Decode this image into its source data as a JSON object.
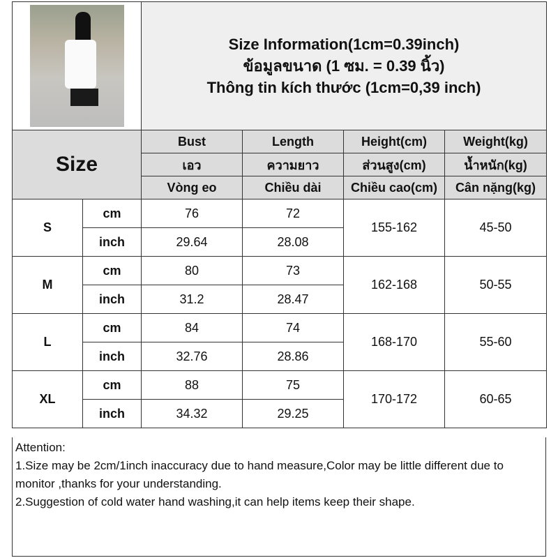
{
  "title_lines": [
    "Size Information(1cm=0.39inch)",
    "ข้อมูลขนาด (1 ซม. = 0.39 นิ้ว)",
    "Thông tin kích thước (1cm=0,39 inch)"
  ],
  "size_label": "Size",
  "headers": [
    [
      "Bust",
      "เอว",
      "Vòng eo"
    ],
    [
      "Length",
      "ความยาว",
      "Chiều dài"
    ],
    [
      "Height(cm)",
      "ส่วนสูง(cm)",
      "Chiều cao(cm)"
    ],
    [
      "Weight(kg)",
      "น้ำหนัก(kg)",
      "Cân nặng(kg)"
    ]
  ],
  "rows": [
    {
      "size": "S",
      "cm": {
        "unit": "cm",
        "bust": "76",
        "length": "72"
      },
      "inch": {
        "unit": "inch",
        "bust": "29.64",
        "length": "28.08"
      },
      "height": "155-162",
      "weight": "45-50"
    },
    {
      "size": "M",
      "cm": {
        "unit": "cm",
        "bust": "80",
        "length": "73"
      },
      "inch": {
        "unit": "inch",
        "bust": "31.2",
        "length": "28.47"
      },
      "height": "162-168",
      "weight": "50-55"
    },
    {
      "size": "L",
      "cm": {
        "unit": "cm",
        "bust": "84",
        "length": "74"
      },
      "inch": {
        "unit": "inch",
        "bust": "32.76",
        "length": "28.86"
      },
      "height": "168-170",
      "weight": "55-60"
    },
    {
      "size": "XL",
      "cm": {
        "unit": "cm",
        "bust": "88",
        "length": "75"
      },
      "inch": {
        "unit": "inch",
        "bust": "34.32",
        "length": "29.25"
      },
      "height": "170-172",
      "weight": "60-65"
    }
  ],
  "notes": [
    "Attention:",
    "1.Size may be 2cm/1inch inaccuracy due to hand measure,Color may be little different due to monitor ,thanks for your understanding.",
    "2.Suggestion of cold water hand washing,it can help items keep their shape."
  ]
}
